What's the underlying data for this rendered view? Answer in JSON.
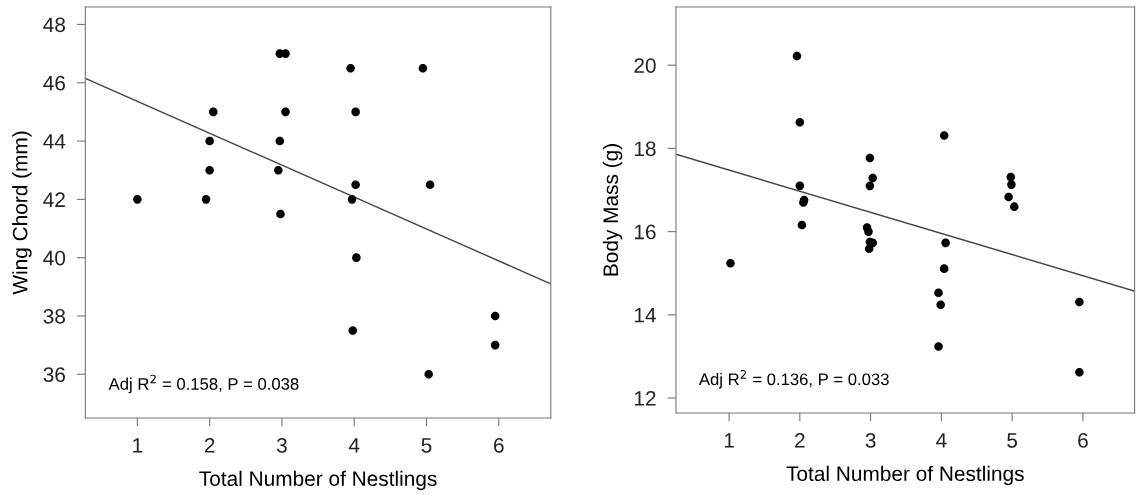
{
  "chart_data": [
    {
      "type": "scatter",
      "xlabel": "Total Number of Nestlings",
      "ylabel": "Wing Chord (mm)",
      "xlim": [
        0.28,
        6.72
      ],
      "xticks": [
        1,
        2,
        3,
        4,
        5,
        6
      ],
      "ylim": [
        34.5,
        48.6
      ],
      "yticks": [
        36,
        38,
        40,
        42,
        44,
        46,
        48
      ],
      "grid": false,
      "legend": false,
      "annotations": [
        "Adj R$^{2}$ = 0.158, P = 0.038"
      ],
      "series": [
        {
          "marker": "circle",
          "color": "#000000",
          "x": [
            1,
            1.95,
            2,
            2,
            2.05,
            2.97,
            3.05,
            2.97,
            2.95,
            2.98,
            3.05,
            3.95,
            4.02,
            4.02,
            3.97,
            4.03,
            3.98,
            4.95,
            5.05,
            5.03,
            5.95,
            5.95
          ],
          "values": [
            42,
            42,
            43,
            44,
            45,
            47,
            47,
            44,
            43,
            41.5,
            45,
            46.5,
            45,
            42.5,
            42,
            40,
            37.5,
            46.5,
            42.5,
            36,
            38,
            37
          ]
        },
        {
          "type": "line",
          "color": "#444444",
          "x": [
            0.28,
            6.72
          ],
          "values": [
            46.15,
            39.1
          ]
        }
      ]
    },
    {
      "type": "scatter",
      "xlabel": "Total Number of Nestlings",
      "ylabel": "Body Mass (g)",
      "xlim": [
        0.25,
        6.73
      ],
      "xticks": [
        1,
        2,
        3,
        4,
        5,
        6
      ],
      "ylim": [
        11.64,
        21.4
      ],
      "yticks": [
        12,
        14,
        16,
        18,
        20
      ],
      "grid": false,
      "legend": false,
      "annotations": [
        "Adj R$^{2}$ = 0.136, P = 0.033"
      ],
      "series": [
        {
          "marker": "circle",
          "color": "#000000",
          "x": [
            1.02,
            1.96,
            2.0,
            2.0,
            2.06,
            2.05,
            2.03,
            2.95,
            2.97,
            2.99,
            3.03,
            2.99,
            2.99,
            3.03,
            2.98,
            3.96,
            3.99,
            3.96,
            4.04,
            4.06,
            4.04,
            4.98,
            4.99,
            4.95,
            5.03,
            5.95,
            5.95
          ],
          "values": [
            15.24,
            20.22,
            18.63,
            17.1,
            16.76,
            16.7,
            16.16,
            16.1,
            16.0,
            17.77,
            17.29,
            17.1,
            15.75,
            15.73,
            15.59,
            14.53,
            14.24,
            13.24,
            18.31,
            15.73,
            15.11,
            17.31,
            17.13,
            16.83,
            16.6,
            14.31,
            12.62
          ]
        },
        {
          "type": "line",
          "color": "#444444",
          "x": [
            0.25,
            6.73
          ],
          "values": [
            17.86,
            14.57
          ]
        }
      ]
    }
  ]
}
